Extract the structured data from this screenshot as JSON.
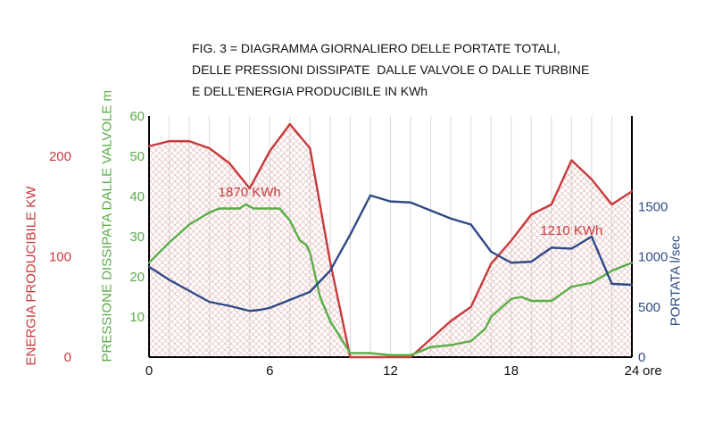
{
  "chart_data": {
    "type": "line",
    "title_lines": [
      "FIG. 3 = DIAGRAMMA GIORNALIERO DELLE PORTATE TOTALI,",
      "DELLE PRESSIONI DISSIPATE  DALLE VALVOLE O DALLE TURBINE",
      "E DELL'ENERGIA PRODUCIBILE IN KWh"
    ],
    "xlabel": "ore",
    "xlim": [
      0,
      24
    ],
    "x_ticks": [
      0,
      6,
      12,
      18,
      24
    ],
    "x_tick_labels": [
      "0",
      "6",
      "12",
      "18",
      "24"
    ],
    "grid": true,
    "axes": {
      "energy": {
        "label": "ENERGIA PRODUCIBILE  KW",
        "ylim": [
          0,
          240
        ],
        "ticks": [
          0,
          100,
          200
        ],
        "color": "#c8393a"
      },
      "pressure": {
        "label": "PRESSIONE DISSIPATA DALLE VALVOLE   m",
        "ylim": [
          0,
          60
        ],
        "ticks": [
          10,
          20,
          30,
          40,
          50,
          60
        ],
        "color": "#5aad46"
      },
      "flow": {
        "label": "PORTATA l/sec",
        "ylim": [
          0,
          2400
        ],
        "ticks": [
          0,
          500,
          1000,
          1500
        ],
        "color": "#2e4a86"
      }
    },
    "series": [
      {
        "axis": "energy",
        "x": [
          0,
          1,
          2,
          3,
          4,
          5,
          6,
          7,
          8,
          9,
          10,
          11,
          12,
          13,
          14,
          15,
          16,
          17,
          18,
          19,
          20,
          21,
          22,
          23,
          24
        ],
        "values": [
          210,
          215,
          215,
          208,
          193,
          168,
          205,
          232,
          208,
          95,
          0,
          0,
          0,
          0,
          18,
          36,
          50,
          93,
          116,
          142,
          152,
          196,
          177,
          152,
          165
        ]
      },
      {
        "axis": "pressure",
        "x": [
          0,
          1,
          2,
          3,
          3.5,
          4,
          4.5,
          4.8,
          5.2,
          5.5,
          6,
          6.5,
          7,
          7.5,
          7.8,
          8,
          8.5,
          9,
          9.5,
          10,
          11,
          12,
          13,
          14,
          15,
          16,
          16.7,
          17,
          18,
          18.5,
          19,
          20,
          21,
          22,
          23,
          24
        ],
        "values": [
          23.5,
          28.5,
          33,
          36,
          37,
          37,
          37,
          38,
          37,
          37,
          37,
          37,
          34,
          29,
          28,
          26,
          15,
          9,
          5,
          1,
          1,
          0.5,
          0.5,
          2.5,
          3,
          4,
          7,
          10,
          14.5,
          15,
          14,
          14,
          17.5,
          18.5,
          21.5,
          23.5
        ]
      },
      {
        "axis": "flow",
        "x": [
          0,
          1,
          2,
          3,
          4,
          5,
          5.5,
          6,
          7,
          8,
          9,
          10,
          11,
          12,
          13,
          14,
          15,
          16,
          17,
          18,
          19,
          20,
          21,
          22,
          23,
          24
        ],
        "values": [
          900,
          770,
          660,
          550,
          510,
          460,
          470,
          490,
          570,
          650,
          860,
          1220,
          1610,
          1550,
          1540,
          1460,
          1380,
          1320,
          1050,
          940,
          950,
          1090,
          1080,
          1200,
          730,
          720
        ]
      }
    ],
    "annotations": [
      {
        "text": "1870 KWh",
        "x": 5,
        "y_energy": 160,
        "color": "#c8393a"
      },
      {
        "text": "1210 KWh",
        "x": 21,
        "y_energy": 122,
        "color": "#c8393a"
      }
    ]
  }
}
